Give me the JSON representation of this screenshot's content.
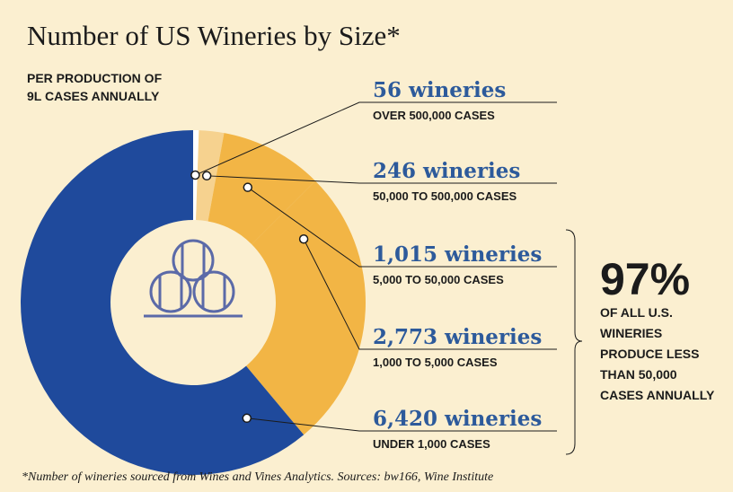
{
  "chart_data": {
    "type": "pie",
    "donut": true,
    "title": "Number of US Wineries by Size*",
    "subtitle": [
      "PER PRODUCTION OF",
      "9L CASES ANNUALLY"
    ],
    "categories": [
      "OVER 500,000 CASES",
      "50,000 TO 500,000 CASES",
      "5,000 TO 50,000 CASES",
      "1,000 TO 5,000 CASES",
      "UNDER 1,000 CASES"
    ],
    "values": [
      56,
      246,
      1015,
      2773,
      6420
    ],
    "value_labels": [
      "56 wineries",
      "246 wineries",
      "1,015 wineries",
      "2,773 wineries",
      "6,420 wineries"
    ],
    "colors": [
      "#ffffff",
      "#f6d28f",
      "#f2b545",
      "#f2b545",
      "#1f4a9c"
    ],
    "highlight": "97%",
    "highlight_text": [
      "OF ALL U.S.",
      "WINERIES",
      "PRODUCE LESS",
      "THAN 50,000",
      "CASES ANNUALLY"
    ],
    "footnote": "*Number of wineries sourced from Wines and Vines Analytics. Sources: bw166, Wine Institute"
  }
}
